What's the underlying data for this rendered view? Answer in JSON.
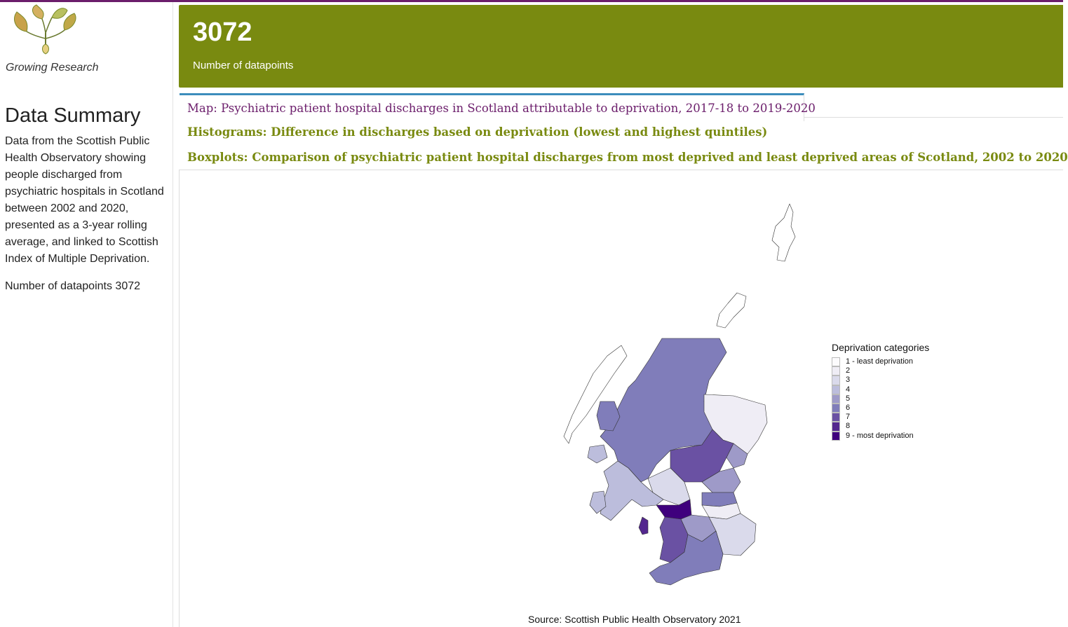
{
  "sidebar": {
    "logo_caption": "Growing Research",
    "title": "Data Summary",
    "description": "Data from the Scottish Public Health Observatory showing people discharged from psychiatric hospitals in Scotland between 2002 and 2020, presented as a 3-year rolling average, and linked to Scottish Index of Multiple Deprivation.",
    "count_text": "Number of datapoints 3072"
  },
  "value_box": {
    "value": "3072",
    "label": "Number of datapoints",
    "color": "#798a10"
  },
  "tabs": [
    {
      "label": "Map: Psychiatric patient hospital discharges in Scotland attributable to deprivation, 2017-18 to 2019-2020",
      "active": true
    },
    {
      "label": "Histograms: Difference in discharges based on deprivation (lowest and highest quintiles)",
      "active": false
    },
    {
      "label": "Boxplots: Comparison of psychiatric patient hospital discharges from most deprived and least deprived areas of Scotland, 2002 to 2020",
      "active": false
    }
  ],
  "map": {
    "legend_title": "Deprivation categories",
    "legend": [
      {
        "label": "1 - least deprivation",
        "color": "#fcfbfd"
      },
      {
        "label": "2",
        "color": "#efedf5"
      },
      {
        "label": "3",
        "color": "#dadaeb"
      },
      {
        "label": "4",
        "color": "#bcbddc"
      },
      {
        "label": "5",
        "color": "#9e9ac8"
      },
      {
        "label": "6",
        "color": "#807dba"
      },
      {
        "label": "7",
        "color": "#6a51a3"
      },
      {
        "label": "8",
        "color": "#54278f"
      },
      {
        "label": "9 - most deprivation",
        "color": "#3f007d"
      }
    ],
    "source": "Source: Scottish Public Health Observatory 2021"
  }
}
